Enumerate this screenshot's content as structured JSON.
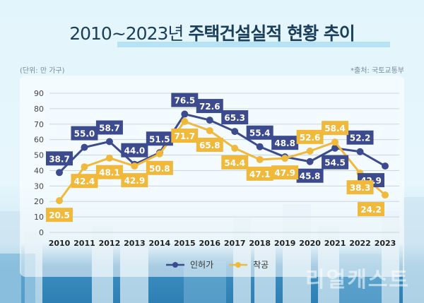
{
  "title_light": "2010~2023년",
  "title_bold": "주택건설실적 현황 추이",
  "unit_note": "(단위: 만 가구)",
  "source_note": "*출처: 국토교통부",
  "watermark": "리얼캐스트",
  "colors": {
    "permits": "#3c4a8e",
    "starts": "#f0b93b"
  },
  "chart_data": {
    "type": "line",
    "title": "2010~2023년 주택건설실적 현황 추이",
    "xlabel": "",
    "ylabel": "만 가구",
    "x": [
      "2010",
      "2011",
      "2012",
      "2013",
      "2014",
      "2015",
      "2016",
      "2017",
      "2018",
      "2019",
      "2020",
      "2021",
      "2022",
      "2023"
    ],
    "yticks": [
      "0",
      "10",
      "20",
      "30",
      "40",
      "50",
      "60",
      "70",
      "80",
      "90"
    ],
    "ylim": [
      0,
      90
    ],
    "grid": true,
    "legend_position": "bottom",
    "series": [
      {
        "name": "인허가",
        "values": [
          38.7,
          55.0,
          58.7,
          44.0,
          51.5,
          76.5,
          72.6,
          65.3,
          55.4,
          48.8,
          45.8,
          54.5,
          52.2,
          42.9
        ],
        "labels": [
          "38.7",
          "55.0",
          "58.7",
          "44.0",
          "51.5",
          "76.5",
          "72.6",
          "65.3",
          "55.4",
          "48.8",
          "45.8",
          "54.5",
          "52.2",
          "42.9"
        ]
      },
      {
        "name": "착공",
        "values": [
          20.5,
          42.4,
          48.1,
          42.9,
          50.8,
          71.7,
          65.8,
          54.4,
          47.1,
          47.9,
          52.6,
          58.4,
          38.3,
          24.2
        ],
        "labels": [
          "20.5",
          "42.4",
          "48.1",
          "42.9",
          "50.8",
          "71.7",
          "65.8",
          "54.4",
          "47.1",
          "47.9",
          "52.6",
          "58.4",
          "38.3",
          "24.2"
        ]
      }
    ]
  }
}
